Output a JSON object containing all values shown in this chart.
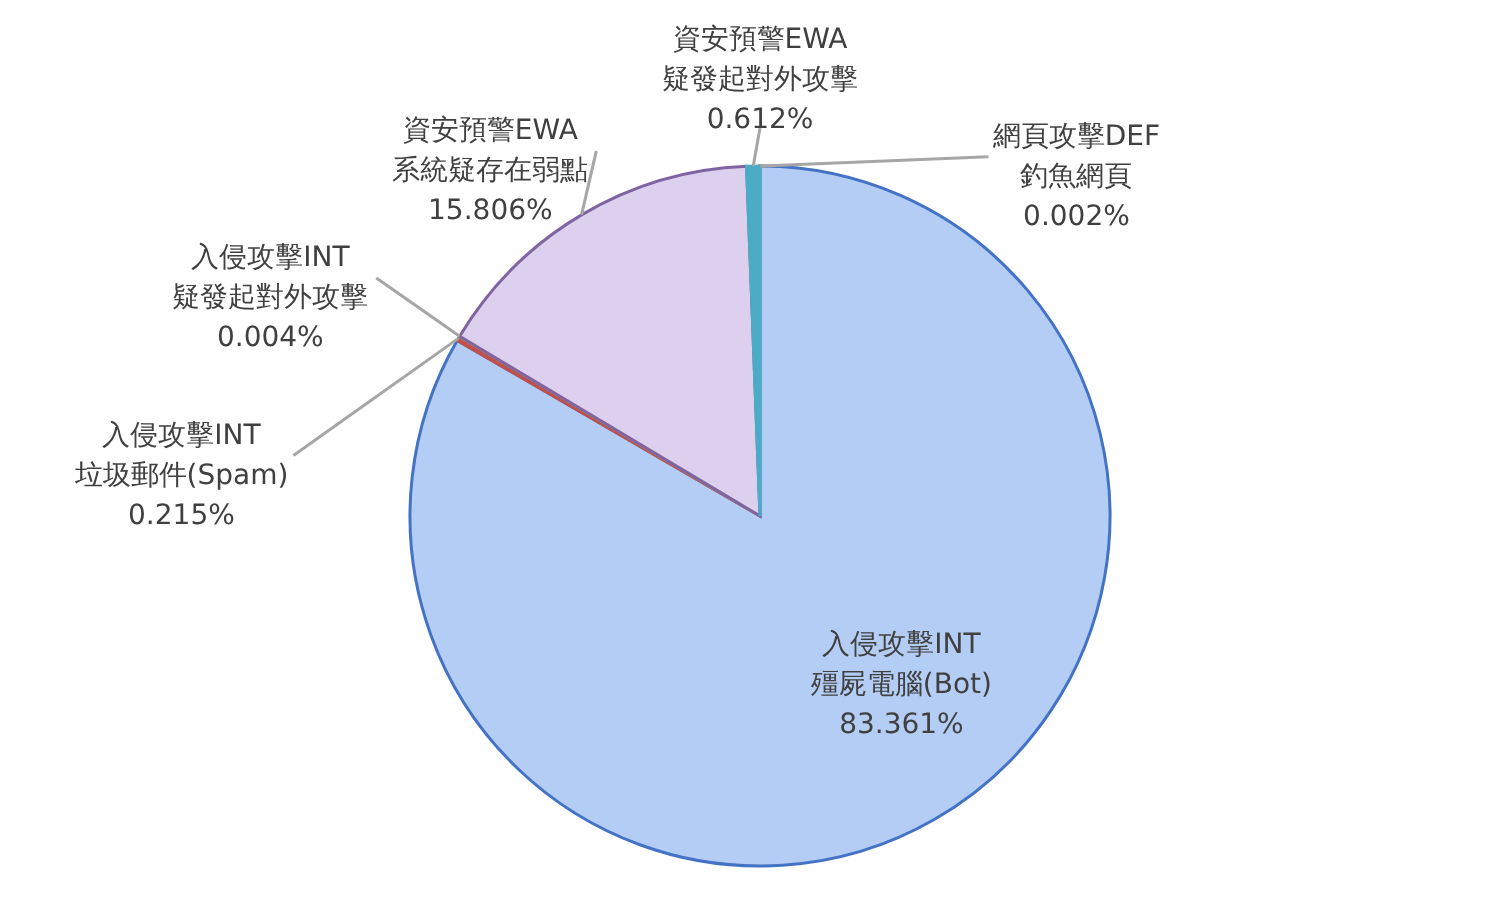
{
  "chart_data": {
    "type": "pie",
    "categories": [
      "網頁攻擊DEF 釣魚網頁",
      "入侵攻擊INT 殭屍電腦(Bot)",
      "入侵攻擊INT 垃圾郵件(Spam)",
      "入侵攻擊INT 疑發起對外攻擊",
      "資安預警EWA 系統疑存在弱點",
      "資安預警EWA 疑發起對外攻擊"
    ],
    "values": [
      0.002,
      83.361,
      0.215,
      0.004,
      15.806,
      0.612
    ],
    "value_labels": [
      "0.002%",
      "83.361%",
      "0.215%",
      "0.004%",
      "15.806%",
      "0.612%"
    ],
    "colors": [
      "#ed7d31",
      "#b4cdf5",
      "#c0504d",
      "#9bbb59",
      "#ddd0ee",
      "#4bacc6"
    ]
  }
}
